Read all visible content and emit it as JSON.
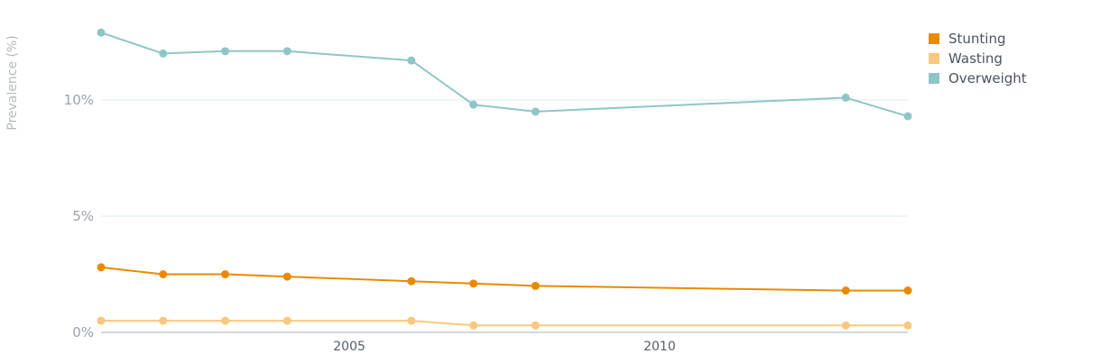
{
  "chart_data": {
    "type": "line",
    "ylabel": "Prevalence (%)",
    "ylim": [
      0,
      13
    ],
    "y_ticks": [
      {
        "value": 0,
        "label": "0%"
      },
      {
        "value": 5,
        "label": "5%"
      },
      {
        "value": 10,
        "label": "10%"
      }
    ],
    "xlim": [
      2001,
      2014
    ],
    "x_ticks": [
      {
        "value": 2005,
        "label": "2005"
      },
      {
        "value": 2010,
        "label": "2010"
      }
    ],
    "grid": true,
    "legend_position": "top-right",
    "series": [
      {
        "name": "Stunting",
        "color": "#ea8a00",
        "points": [
          [
            2001,
            2.8
          ],
          [
            2002,
            2.5
          ],
          [
            2003,
            2.5
          ],
          [
            2004,
            2.4
          ],
          [
            2006,
            2.2
          ],
          [
            2007,
            2.1
          ],
          [
            2008,
            2.0
          ],
          [
            2013,
            1.8
          ],
          [
            2014,
            1.8
          ]
        ]
      },
      {
        "name": "Wasting",
        "color": "#fbc77e",
        "points": [
          [
            2001,
            0.5
          ],
          [
            2002,
            0.5
          ],
          [
            2003,
            0.5
          ],
          [
            2004,
            0.5
          ],
          [
            2006,
            0.5
          ],
          [
            2007,
            0.3
          ],
          [
            2008,
            0.3
          ],
          [
            2013,
            0.3
          ],
          [
            2014,
            0.3
          ]
        ]
      },
      {
        "name": "Overweight",
        "color": "#8fc6c5",
        "points": [
          [
            2001,
            12.9
          ],
          [
            2002,
            12.0
          ],
          [
            2003,
            12.1
          ],
          [
            2004,
            12.1
          ],
          [
            2006,
            11.7
          ],
          [
            2007,
            9.8
          ],
          [
            2008,
            9.5
          ],
          [
            2013,
            10.1
          ],
          [
            2014,
            9.3
          ]
        ]
      }
    ]
  }
}
